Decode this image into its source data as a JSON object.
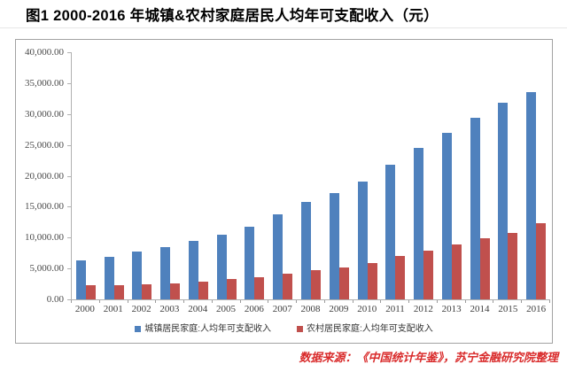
{
  "page": {
    "title": "图1 2000-2016 年城镇&农村家庭居民人均年可支配收入（元）",
    "source_note": "数据来源：《中国统计年鉴》，苏宁金融研究院整理"
  },
  "chart_data": {
    "type": "bar",
    "title": "图1 2000-2016 年城镇&农村家庭居民人均年可支配收入（元）",
    "unit": "元",
    "categories": [
      "2000",
      "2001",
      "2002",
      "2003",
      "2004",
      "2005",
      "2006",
      "2007",
      "2008",
      "2009",
      "2010",
      "2011",
      "2012",
      "2013",
      "2014",
      "2015",
      "2016"
    ],
    "series": [
      {
        "key": "urban",
        "name": "城镇居民家庭:人均年可支配收入",
        "color": "#4F81BD",
        "values": [
          6280,
          6859.6,
          7702.8,
          8472.2,
          9421.6,
          10493,
          11759.5,
          13785.8,
          15780.8,
          17174.7,
          19109.4,
          21809.8,
          24564.7,
          26955.1,
          29381,
          31790.3,
          33616.2
        ]
      },
      {
        "key": "rural",
        "name": "农村居民家庭:人均年可支配收入",
        "color": "#C0504D",
        "values": [
          2253.4,
          2366.4,
          2475.6,
          2622.2,
          2936.4,
          3254.9,
          3587,
          4140.4,
          4760.6,
          5153.2,
          5919,
          6977.3,
          7916.6,
          8895.9,
          9892,
          10772,
          12363.4
        ]
      }
    ],
    "xlabel": "",
    "ylabel": "",
    "ylim": [
      0,
      40000
    ],
    "ytick_step": 5000,
    "ytick_labels": [
      "0.00",
      "5,000.00",
      "10,000.00",
      "15,000.00",
      "20,000.00",
      "25,000.00",
      "30,000.00",
      "35,000.00",
      "40,000.00"
    ],
    "grid": false,
    "legend_position": "bottom"
  }
}
